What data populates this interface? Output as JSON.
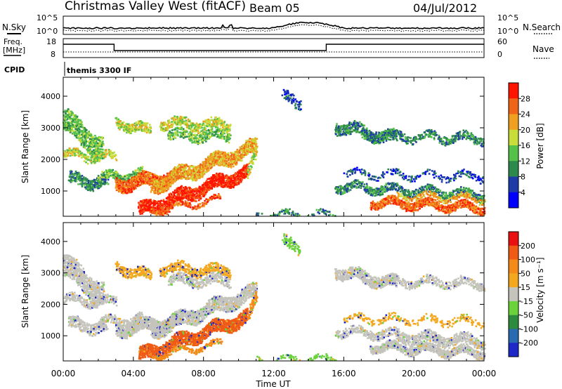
{
  "header": {
    "station": "Christmas Valley West (fitACF)",
    "beam": "Beam 05",
    "date": "04/Jul/2012"
  },
  "strips": {
    "nsky_label": "N.Sky",
    "nsearch_label": "N.Search",
    "freq_label_1": "Freq.",
    "freq_label_2": "[MHz]",
    "nave_label": "Nave",
    "cpid_label": "CPID",
    "cpid_value": "themis 3300 IF",
    "noise_ticks": [
      "10^5",
      "10^0"
    ],
    "freq_ticks": [
      "18",
      "8"
    ],
    "nave_ticks": [
      "60",
      "0"
    ]
  },
  "chart_data": [
    {
      "type": "heatmap",
      "name": "power",
      "ylabel": "Slant Range [km]",
      "xlabel": "",
      "x_ticks": [
        "00:00",
        "04:00",
        "08:00",
        "12:00",
        "16:00",
        "20:00",
        "00:00"
      ],
      "y_ticks": [
        1000,
        2000,
        3000,
        4000
      ],
      "ylim": [
        200,
        4600
      ],
      "colorbar": {
        "label": "Power [dB]",
        "ticks": [
          4,
          8,
          12,
          16,
          20,
          24,
          28
        ],
        "colors": [
          "#0000ff",
          "#1e3ca8",
          "#2e8a4c",
          "#55c04a",
          "#c8dd3a",
          "#f0a020",
          "#f06418",
          "#ff1400"
        ]
      }
    },
    {
      "type": "heatmap",
      "name": "velocity",
      "ylabel": "Slant Range [km]",
      "xlabel": "Time UT",
      "x_ticks": [
        "00:00",
        "04:00",
        "08:00",
        "12:00",
        "16:00",
        "20:00",
        "00:00"
      ],
      "y_ticks": [
        1000,
        2000,
        3000,
        4000
      ],
      "ylim": [
        200,
        4600
      ],
      "colorbar": {
        "label": "Velocity [m s⁻¹]",
        "ticks": [
          200,
          100,
          50,
          15,
          -15,
          -50,
          -100,
          -200
        ],
        "colors": [
          "#1e28c8",
          "#2a6ab0",
          "#2e8a3c",
          "#6cd23c",
          "#c4c4bc",
          "#f4a820",
          "#f48a18",
          "#f05a14",
          "#e81010"
        ]
      }
    }
  ]
}
